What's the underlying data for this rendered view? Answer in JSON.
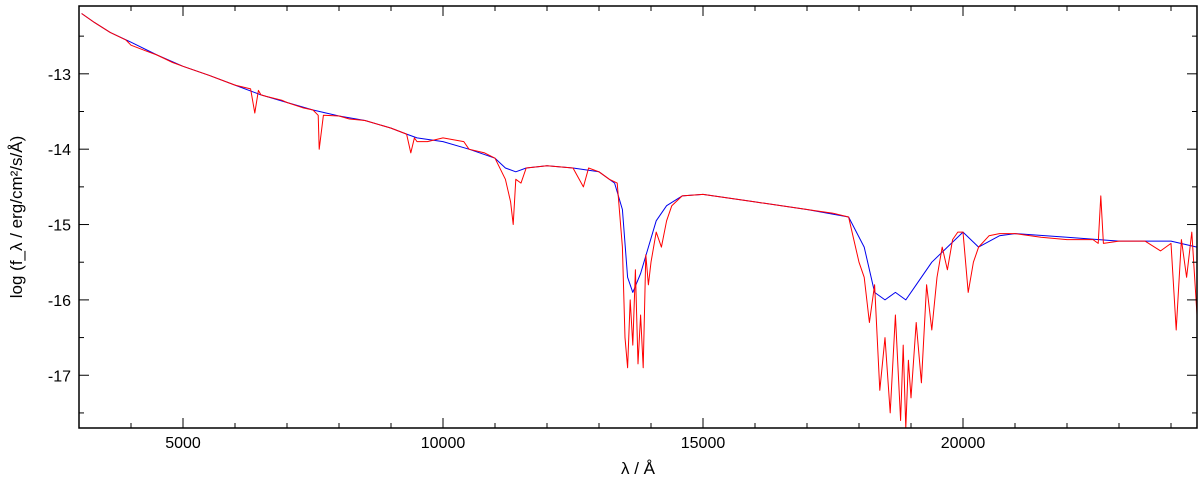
{
  "chart_data": {
    "type": "line",
    "title": "",
    "xlabel": "λ / Å",
    "ylabel": "log (f_λ / erg/cm²/s/Å)",
    "xlim": [
      3000,
      24500
    ],
    "ylim": [
      -17.7,
      -12.1
    ],
    "x_ticks": [
      5000,
      10000,
      15000,
      20000
    ],
    "x_tick_labels": [
      "5000",
      "10000",
      "15000",
      "20000"
    ],
    "y_ticks": [
      -13,
      -14,
      -15,
      -16,
      -17
    ],
    "y_tick_labels": [
      "-13",
      "-14",
      "-15",
      "-16",
      "-17"
    ],
    "grid": false,
    "legend": "none",
    "series": [
      {
        "color": "#0000ee",
        "x": [
          3050,
          3300,
          3600,
          4000,
          4500,
          5000,
          5500,
          6000,
          6500,
          7000,
          7500,
          8000,
          8500,
          9000,
          9300,
          9500,
          10000,
          10500,
          11000,
          11200,
          11400,
          11600,
          12000,
          12500,
          13000,
          13300,
          13450,
          13550,
          13650,
          13800,
          13950,
          14100,
          14300,
          14600,
          15000,
          16000,
          17000,
          17800,
          18100,
          18300,
          18500,
          18700,
          18900,
          19100,
          19400,
          19700,
          20000,
          20300,
          20700,
          21000,
          22000,
          23000,
          24000,
          24500
        ],
        "y": [
          -12.2,
          -12.32,
          -12.45,
          -12.58,
          -12.75,
          -12.9,
          -13.02,
          -13.15,
          -13.28,
          -13.38,
          -13.48,
          -13.56,
          -13.62,
          -13.72,
          -13.8,
          -13.85,
          -13.9,
          -14.0,
          -14.12,
          -14.25,
          -14.3,
          -14.25,
          -14.22,
          -14.25,
          -14.3,
          -14.45,
          -14.8,
          -15.7,
          -15.9,
          -15.65,
          -15.3,
          -14.95,
          -14.75,
          -14.62,
          -14.6,
          -14.7,
          -14.8,
          -14.9,
          -15.3,
          -15.9,
          -16.0,
          -15.9,
          -16.0,
          -15.8,
          -15.5,
          -15.3,
          -15.1,
          -15.3,
          -15.15,
          -15.12,
          -15.17,
          -15.22,
          -15.22,
          -15.3
        ]
      },
      {
        "color": "#ff0000",
        "x": [
          3050,
          3300,
          3600,
          3900,
          4000,
          4300,
          4500,
          4800,
          5000,
          5500,
          6000,
          6300,
          6380,
          6450,
          6500,
          6600,
          6900,
          7000,
          7300,
          7500,
          7600,
          7620,
          7700,
          8000,
          8200,
          8500,
          9000,
          9300,
          9380,
          9450,
          9500,
          9700,
          10000,
          10400,
          10500,
          10800,
          11000,
          11200,
          11300,
          11350,
          11400,
          11500,
          11600,
          12000,
          12500,
          12700,
          12800,
          13000,
          13200,
          13350,
          13450,
          13500,
          13550,
          13600,
          13650,
          13700,
          13750,
          13800,
          13850,
          13900,
          13950,
          14000,
          14100,
          14200,
          14300,
          14400,
          14600,
          15000,
          16000,
          17000,
          17500,
          17800,
          17900,
          18000,
          18100,
          18200,
          18300,
          18400,
          18500,
          18600,
          18700,
          18800,
          18850,
          18900,
          18950,
          19000,
          19100,
          19200,
          19300,
          19400,
          19500,
          19600,
          19700,
          19800,
          19900,
          20000,
          20100,
          20200,
          20300,
          20500,
          20700,
          21000,
          21500,
          22000,
          22500,
          22600,
          22650,
          22700,
          23000,
          23500,
          23800,
          24000,
          24100,
          24200,
          24300,
          24400,
          24500
        ],
        "y": [
          -12.2,
          -12.32,
          -12.45,
          -12.55,
          -12.62,
          -12.7,
          -12.75,
          -12.85,
          -12.9,
          -13.02,
          -13.15,
          -13.2,
          -13.52,
          -13.22,
          -13.28,
          -13.3,
          -13.35,
          -13.38,
          -13.45,
          -13.48,
          -13.55,
          -14.0,
          -13.55,
          -13.56,
          -13.6,
          -13.62,
          -13.72,
          -13.8,
          -14.05,
          -13.85,
          -13.9,
          -13.9,
          -13.85,
          -13.9,
          -14.0,
          -14.05,
          -14.12,
          -14.4,
          -14.7,
          -15.0,
          -14.4,
          -14.45,
          -14.25,
          -14.22,
          -14.25,
          -14.5,
          -14.25,
          -14.3,
          -14.4,
          -14.45,
          -15.3,
          -16.5,
          -16.9,
          -16.0,
          -16.6,
          -15.6,
          -16.85,
          -16.2,
          -16.9,
          -15.4,
          -15.8,
          -15.5,
          -15.1,
          -15.3,
          -14.95,
          -14.75,
          -14.62,
          -14.6,
          -14.7,
          -14.8,
          -14.85,
          -14.9,
          -15.2,
          -15.5,
          -15.7,
          -16.3,
          -15.8,
          -17.2,
          -16.5,
          -17.5,
          -16.2,
          -17.6,
          -16.6,
          -17.7,
          -16.8,
          -17.3,
          -16.3,
          -17.1,
          -15.8,
          -16.4,
          -15.7,
          -15.3,
          -15.6,
          -15.2,
          -15.1,
          -15.1,
          -15.9,
          -15.5,
          -15.3,
          -15.15,
          -15.12,
          -15.12,
          -15.17,
          -15.2,
          -15.2,
          -15.25,
          -14.62,
          -15.25,
          -15.22,
          -15.22,
          -15.35,
          -15.25,
          -16.4,
          -15.2,
          -15.7,
          -15.1,
          -16.2
        ]
      }
    ]
  }
}
